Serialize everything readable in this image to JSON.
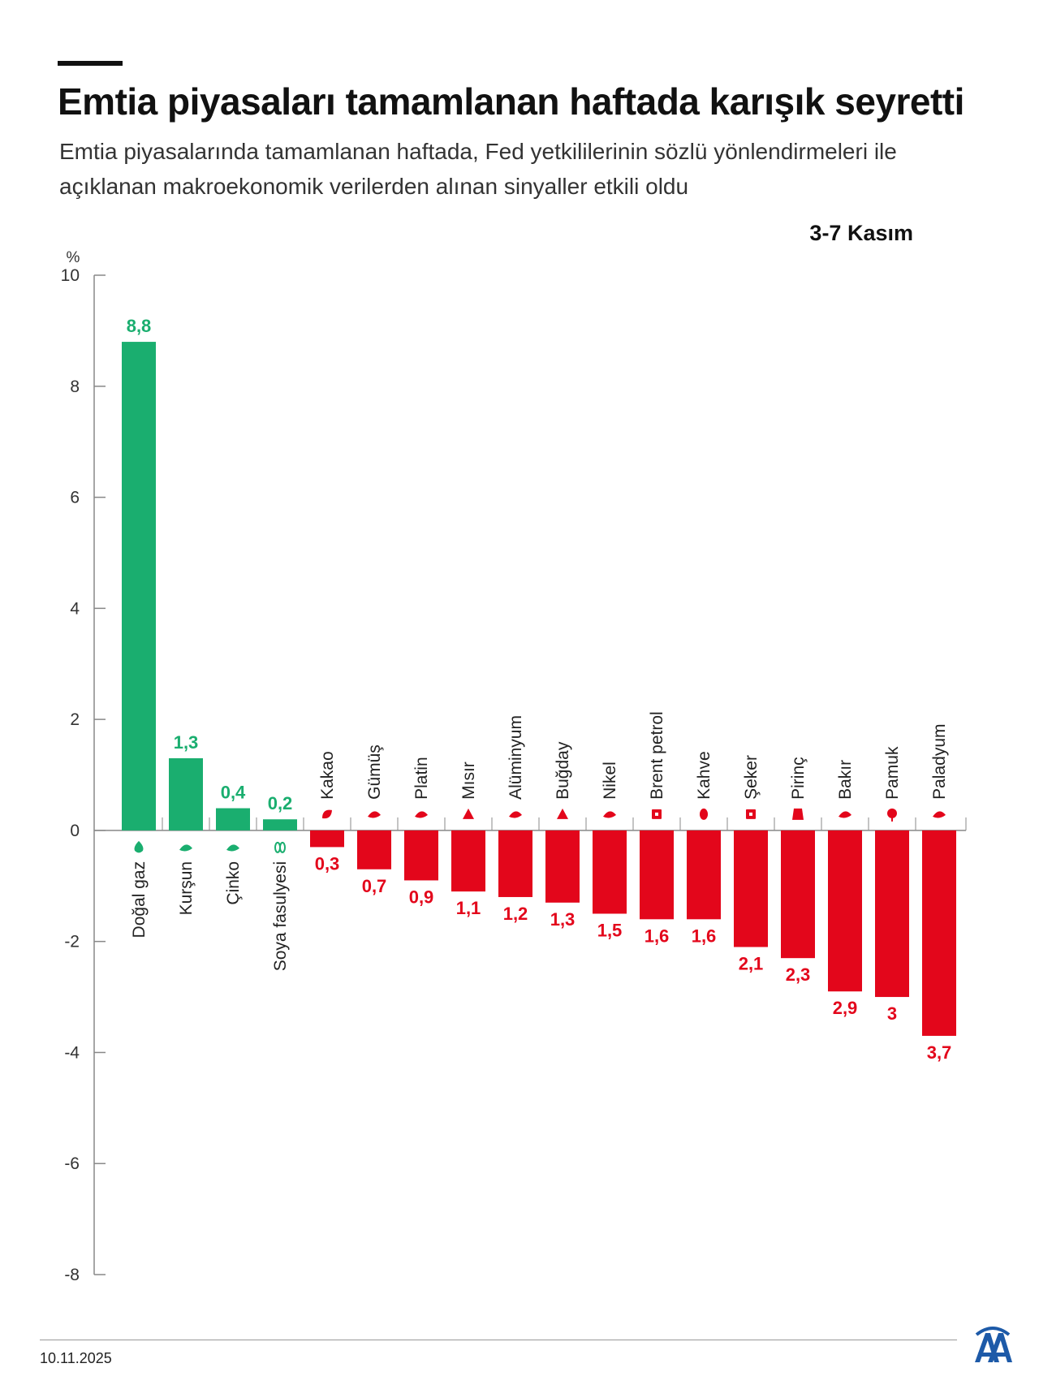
{
  "header": {
    "title": "Emtia piyasaları tamamlanan haftada karışık seyretti",
    "subtitle": "Emtia piyasalarında tamamlanan haftada, Fed yetkililerinin sözlü yönlendirmeleri ile açıklanan makroekonomik verilerden alınan sinyaller etkili oldu",
    "date_range": "3-7 Kasım"
  },
  "footer": {
    "date": "10.11.2025",
    "logo": "AA"
  },
  "colors": {
    "positive": "#1aae6f",
    "negative": "#e3061b",
    "axis": "#888888"
  },
  "chart_data": {
    "type": "bar",
    "title": "",
    "ylabel": "%",
    "xlabel": "",
    "ylim": [
      -8,
      10
    ],
    "yticks": [
      10,
      8,
      6,
      4,
      2,
      0,
      -2,
      -4,
      -6,
      -8
    ],
    "ytick_labels": [
      "10",
      "8",
      "6",
      "4",
      "2",
      "0",
      "-2",
      "-4",
      "-6",
      "-8"
    ],
    "grid": false,
    "categories": [
      "Doğal gaz",
      "Kurşun",
      "Çinko",
      "Soya fasulyesi",
      "Kakao",
      "Gümüş",
      "Platin",
      "Mısır",
      "Alüminyum",
      "Buğday",
      "Nikel",
      "Brent petrol",
      "Kahve",
      "Şeker",
      "Pirinç",
      "Bakır",
      "Pamuk",
      "Paladyum"
    ],
    "values": [
      8.8,
      1.3,
      0.4,
      0.2,
      -0.3,
      -0.7,
      -0.9,
      -1.1,
      -1.2,
      -1.3,
      -1.5,
      -1.6,
      -1.6,
      -2.1,
      -2.3,
      -2.9,
      -3.0,
      -3.7
    ],
    "data_labels": [
      "8,8",
      "1,3",
      "0,4",
      "0,2",
      "0,3",
      "0,7",
      "0,9",
      "1,1",
      "1,2",
      "1,3",
      "1,5",
      "1,6",
      "1,6",
      "2,1",
      "2,3",
      "2,9",
      "3",
      "3,7"
    ],
    "icons": [
      "flame-icon",
      "leaf-icon",
      "leaf-icon",
      "soybean-icon",
      "cocoa-icon",
      "leaf-icon",
      "leaf-icon",
      "corn-icon",
      "leaf-icon",
      "wheat-icon",
      "leaf-icon",
      "oil-barrel-icon",
      "coffee-bean-icon",
      "sugar-icon",
      "rice-sack-icon",
      "leaf-icon",
      "cotton-icon",
      "leaf-icon"
    ]
  }
}
